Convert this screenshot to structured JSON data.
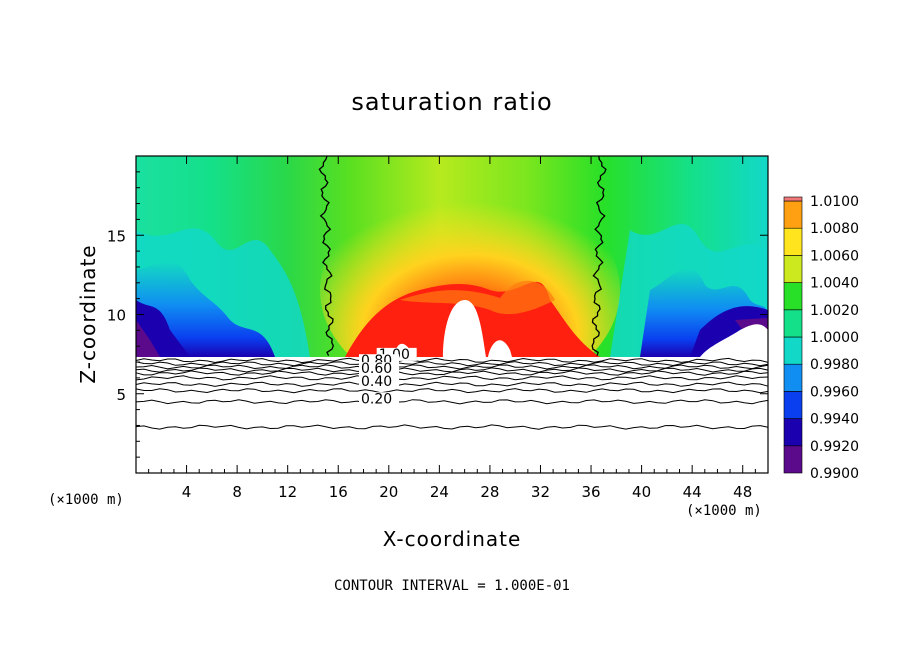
{
  "chart_data": {
    "type": "heatmap",
    "title": "saturation ratio",
    "xlabel": "X-coordinate",
    "ylabel": "Z-coordinate",
    "x_unit_left": "(×1000 m)",
    "x_unit_right": "(×1000 m)",
    "footer": "CONTOUR INTERVAL = 1.000E-01",
    "xlim": [
      0,
      50
    ],
    "ylim": [
      0,
      20
    ],
    "x_ticks": [
      4,
      8,
      12,
      16,
      20,
      24,
      28,
      32,
      36,
      40,
      44,
      48
    ],
    "y_ticks": [
      5,
      10,
      15
    ],
    "colorbar": {
      "levels": [
        "0.9900",
        "0.9920",
        "0.9940",
        "0.9960",
        "0.9980",
        "1.0000",
        "1.0020",
        "1.0040",
        "1.0060",
        "1.0080",
        "1.0100"
      ],
      "colors": [
        "#5b0a8c",
        "#1b00b0",
        "#0a3ff0",
        "#108ef2",
        "#12d8c8",
        "#14e08a",
        "#28e028",
        "#cce81e",
        "#ffe41e",
        "#ffa012",
        "#ff3010",
        "#f07878"
      ]
    },
    "contour_labels": [
      {
        "text": "1.00",
        "x": 19.2,
        "z": 7.2
      },
      {
        "text": "0.80",
        "x": 17.8,
        "z": 6.8
      },
      {
        "text": "0.60",
        "x": 17.8,
        "z": 6.3
      },
      {
        "text": "0.40",
        "x": 17.8,
        "z": 5.5
      },
      {
        "text": "0.20",
        "x": 17.8,
        "z": 4.4
      }
    ],
    "contour_levels_z": [
      7.1,
      6.9,
      6.7,
      6.5,
      6.3,
      6.0,
      5.6,
      5.2,
      4.5,
      2.9
    ],
    "saturation_boundaries": {
      "left_x_at_top": 14.8,
      "left_x_at_bottom": 15.4,
      "right_x_at_top": 36.9,
      "right_x_at_bottom": 36.3
    },
    "notes_colormap": "rainbow"
  }
}
